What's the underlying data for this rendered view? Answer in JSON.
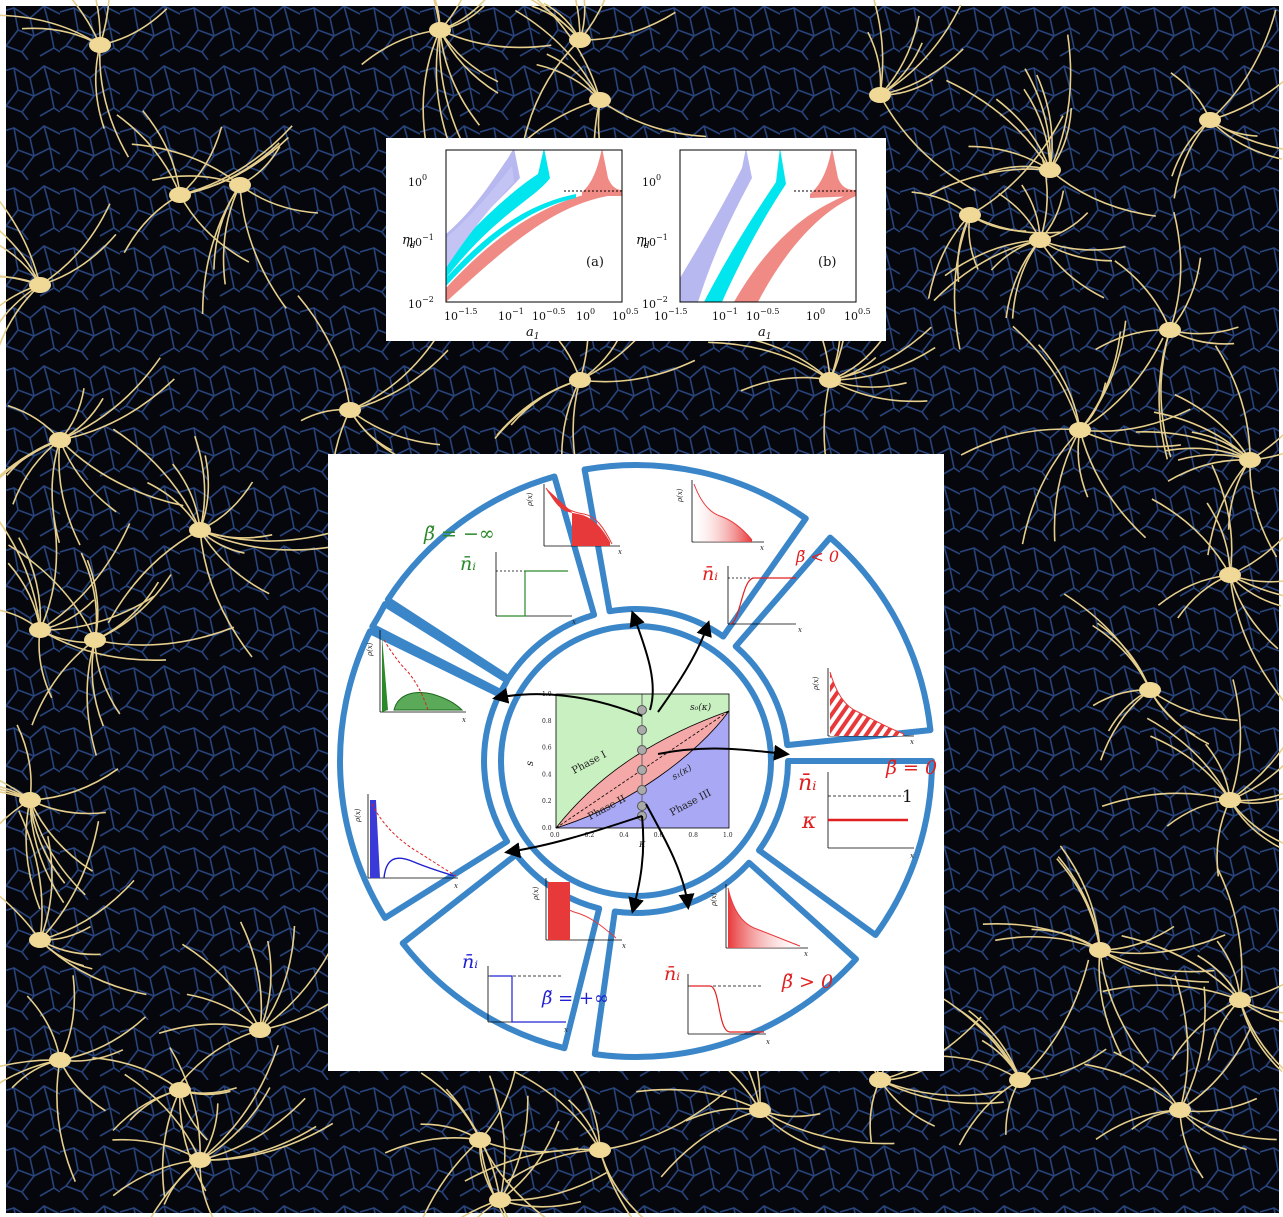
{
  "top_figure": {
    "panels": [
      {
        "label": "(a)"
      },
      {
        "label": "(b)"
      }
    ],
    "ylabel": "η",
    "ylabel_sub": "d",
    "xlabel": "a",
    "xlabel_sub": "1",
    "y_ticks": [
      {
        "base": "10",
        "exp": "0"
      },
      {
        "base": "10",
        "exp": "−1"
      },
      {
        "base": "10",
        "exp": "−2"
      }
    ],
    "x_ticks": [
      {
        "base": "10",
        "exp": "−1.5"
      },
      {
        "base": "10",
        "exp": "−1"
      },
      {
        "base": "10",
        "exp": "−0.5"
      },
      {
        "base": "10",
        "exp": "0"
      },
      {
        "base": "10",
        "exp": "0.5"
      }
    ],
    "colors": {
      "lavender": "#b8b8f0",
      "cyan": "#00e5ee",
      "salmon": "#f08a84"
    }
  },
  "center_chart": {
    "xlabel": "κ",
    "ylabel": "s",
    "x_ticks": [
      "0.0",
      "0.2",
      "0.4",
      "0.6",
      "0.8",
      "1.0"
    ],
    "y_ticks": [
      "0.0",
      "0.2",
      "0.4",
      "0.6",
      "0.8",
      "1.0"
    ],
    "phase1": "Phase I",
    "phase2": "Phase II",
    "phase3": "Phase III",
    "curve_upper": "s₀(κ)",
    "curve_lower": "s₁(κ)",
    "colors": {
      "phase1": "#c8f0c0",
      "phase2": "#f4a8a8",
      "phase3": "#a8a8f4"
    }
  },
  "segments": {
    "beta_neg_inf": "β̃ = −∞",
    "beta_neg": "β̃ < 0",
    "beta_zero": "β̃ = 0",
    "beta_pos": "β̃ > 0",
    "beta_pos_inf": "β̃ = +∞",
    "n_i": "n̄ᵢ",
    "kappa": "κ",
    "one": "1",
    "rho": "ρ(x)",
    "x": "x"
  },
  "colors": {
    "ring": "#3a86c8",
    "green": "#2a8a2a",
    "red": "#e02020",
    "blue": "#2020d0"
  }
}
